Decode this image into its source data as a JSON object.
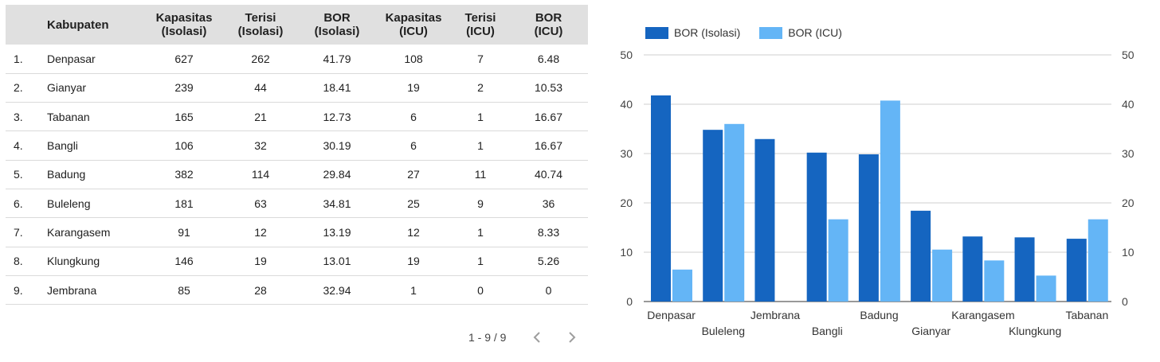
{
  "table": {
    "headers": [
      {
        "line1": "",
        "line2": ""
      },
      {
        "line1": "Kabupaten",
        "line2": ""
      },
      {
        "line1": "Kapasitas",
        "line2": "(Isolasi)"
      },
      {
        "line1": "Terisi",
        "line2": "(Isolasi)"
      },
      {
        "line1": "BOR",
        "line2": "(Isolasi)"
      },
      {
        "line1": "Kapasitas",
        "line2": "(ICU)"
      },
      {
        "line1": "Terisi",
        "line2": "(ICU)"
      },
      {
        "line1": "BOR",
        "line2": "(ICU)"
      }
    ],
    "rows": [
      [
        "1.",
        "Denpasar",
        "627",
        "262",
        "41.79",
        "108",
        "7",
        "6.48"
      ],
      [
        "2.",
        "Gianyar",
        "239",
        "44",
        "18.41",
        "19",
        "2",
        "10.53"
      ],
      [
        "3.",
        "Tabanan",
        "165",
        "21",
        "12.73",
        "6",
        "1",
        "16.67"
      ],
      [
        "4.",
        "Bangli",
        "106",
        "32",
        "30.19",
        "6",
        "1",
        "16.67"
      ],
      [
        "5.",
        "Badung",
        "382",
        "114",
        "29.84",
        "27",
        "11",
        "40.74"
      ],
      [
        "6.",
        "Buleleng",
        "181",
        "63",
        "34.81",
        "25",
        "9",
        "36"
      ],
      [
        "7.",
        "Karangasem",
        "91",
        "12",
        "13.19",
        "12",
        "1",
        "8.33"
      ],
      [
        "8.",
        "Klungkung",
        "146",
        "19",
        "13.01",
        "19",
        "1",
        "5.26"
      ],
      [
        "9.",
        "Jembrana",
        "85",
        "28",
        "32.94",
        "1",
        "0",
        "0"
      ]
    ]
  },
  "pagination": {
    "label": "1 - 9 / 9",
    "prev_icon": "chevron-left-icon",
    "next_icon": "chevron-right-icon"
  },
  "chart_data": {
    "type": "bar",
    "categories": [
      "Denpasar",
      "Buleleng",
      "Jembrana",
      "Bangli",
      "Badung",
      "Gianyar",
      "Karangasem",
      "Klungkung",
      "Tabanan"
    ],
    "series": [
      {
        "name": "BOR (Isolasi)",
        "values": [
          41.79,
          34.81,
          32.94,
          30.19,
          29.84,
          18.41,
          13.19,
          13.01,
          12.73
        ],
        "color": "#1565c0"
      },
      {
        "name": "BOR (ICU)",
        "values": [
          6.48,
          36,
          0,
          16.67,
          40.74,
          10.53,
          8.33,
          5.26,
          16.67
        ],
        "color": "#64b5f6"
      }
    ],
    "ylim": [
      0,
      50
    ],
    "yticks": [
      0,
      10,
      20,
      30,
      40,
      50
    ],
    "title": "",
    "xlabel": "",
    "ylabel": "",
    "grid": true,
    "legend_position": "top-left",
    "axes": "left-and-right"
  }
}
